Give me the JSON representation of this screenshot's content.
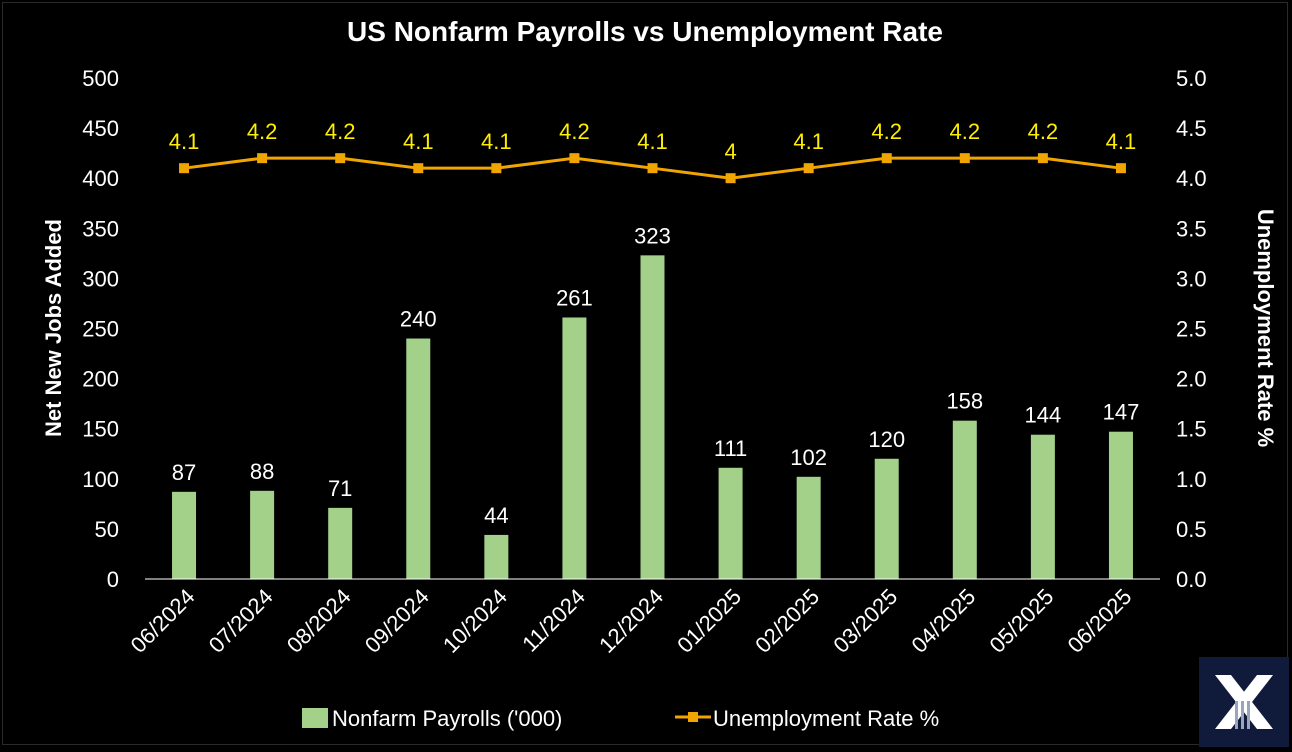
{
  "colors": {
    "background": "#000000",
    "bar": "#a3d18a",
    "line": "#f0a500",
    "line_label": "#ffee00",
    "text": "#ffffff",
    "logo_bg": "#101a3a"
  },
  "logo": {
    "icon": "x-logo-icon"
  },
  "chart_data": {
    "type": "bar",
    "title": "US Nonfarm Payrolls vs Unemployment Rate",
    "categories": [
      "06/2024",
      "07/2024",
      "08/2024",
      "09/2024",
      "10/2024",
      "11/2024",
      "12/2024",
      "01/2025",
      "02/2025",
      "03/2025",
      "04/2025",
      "05/2025",
      "06/2025"
    ],
    "ylabel": "Net New Jobs Added",
    "y2label": "Unemployment Rate %",
    "ylim": [
      0,
      500
    ],
    "y2lim": [
      0,
      5
    ],
    "yticks": [
      "0",
      "50",
      "100",
      "150",
      "200",
      "250",
      "300",
      "350",
      "400",
      "450",
      "500"
    ],
    "y2ticks": [
      "0.0",
      "0.5",
      "1.0",
      "1.5",
      "2.0",
      "2.5",
      "3.0",
      "3.5",
      "4.0",
      "4.5",
      "5.0"
    ],
    "grid": false,
    "legend_position": "bottom",
    "series": [
      {
        "name": "Nonfarm Payrolls ('000)",
        "type": "bar",
        "axis": "left",
        "values": [
          87,
          88,
          71,
          240,
          44,
          261,
          323,
          111,
          102,
          120,
          158,
          144,
          147
        ]
      },
      {
        "name": "Unemployment Rate %",
        "type": "line",
        "axis": "right",
        "values": [
          4.1,
          4.2,
          4.2,
          4.1,
          4.1,
          4.2,
          4.1,
          4,
          4.1,
          4.2,
          4.2,
          4.2,
          4.1
        ]
      }
    ]
  }
}
